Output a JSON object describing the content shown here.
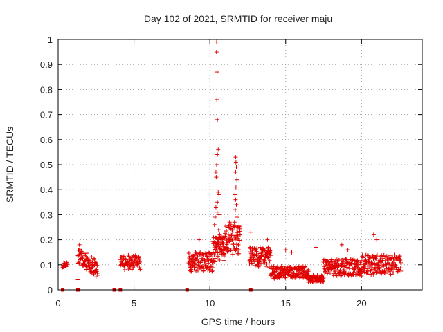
{
  "chart_data": {
    "type": "scatter",
    "title": "Day 102 of 2021, SRMTID for receiver maju",
    "xlabel": "GPS time / hours",
    "ylabel": "SRMTID / TECUs",
    "xlim": [
      0,
      24
    ],
    "ylim": [
      0,
      1
    ],
    "xticks": [
      0,
      5,
      10,
      15,
      20
    ],
    "xtick_labels": [
      "0",
      "5",
      "10",
      "15",
      "20"
    ],
    "yticks": [
      0,
      0.1,
      0.2,
      0.3,
      0.4,
      0.5,
      0.6,
      0.7,
      0.8,
      0.9,
      1
    ],
    "ytick_labels": [
      "0",
      "0.1",
      "0.2",
      "0.3",
      "0.4",
      "0.5",
      "0.6",
      "0.7",
      "0.8",
      "0.9",
      "1"
    ],
    "grid": true,
    "series_color": "#e00000",
    "marker": "+",
    "segments": [
      {
        "x_start": 0.3,
        "x_end": 0.6,
        "y_base": 0.1,
        "y_amp": 0.01,
        "count": 14
      },
      {
        "x_start": 1.3,
        "x_end": 2.6,
        "y_base": 0.14,
        "y_end": 0.08,
        "y_amp": 0.035,
        "count": 90
      },
      {
        "x_start": 4.1,
        "x_end": 5.4,
        "y_base": 0.11,
        "y_amp": 0.03,
        "count": 80
      },
      {
        "x_start": 8.6,
        "x_end": 10.2,
        "y_base": 0.11,
        "y_amp": 0.04,
        "count": 110
      },
      {
        "x_start": 10.2,
        "x_end": 11.0,
        "y_base": 0.16,
        "y_amp": 0.05,
        "count": 70
      },
      {
        "x_start": 11.0,
        "x_end": 12.0,
        "y_base": 0.2,
        "y_amp": 0.06,
        "count": 70
      },
      {
        "x_start": 12.6,
        "x_end": 14.0,
        "y_base": 0.13,
        "y_amp": 0.04,
        "count": 110
      },
      {
        "x_start": 14.0,
        "x_end": 16.5,
        "y_base": 0.07,
        "y_amp": 0.025,
        "count": 170
      },
      {
        "x_start": 16.5,
        "x_end": 17.5,
        "y_base": 0.045,
        "y_amp": 0.015,
        "count": 80
      },
      {
        "x_start": 17.5,
        "x_end": 20.0,
        "y_base": 0.09,
        "y_amp": 0.035,
        "count": 170
      },
      {
        "x_start": 20.0,
        "x_end": 22.6,
        "y_base": 0.1,
        "y_amp": 0.04,
        "count": 170
      }
    ],
    "peaks": [
      {
        "x": 10.45,
        "y": 0.99
      },
      {
        "x": 10.44,
        "y": 0.95
      },
      {
        "x": 10.48,
        "y": 0.87
      },
      {
        "x": 10.46,
        "y": 0.76
      },
      {
        "x": 10.5,
        "y": 0.68
      },
      {
        "x": 10.55,
        "y": 0.56
      },
      {
        "x": 10.5,
        "y": 0.54
      },
      {
        "x": 10.45,
        "y": 0.5
      },
      {
        "x": 10.4,
        "y": 0.47
      },
      {
        "x": 10.42,
        "y": 0.45
      },
      {
        "x": 10.55,
        "y": 0.39
      },
      {
        "x": 10.6,
        "y": 0.38
      },
      {
        "x": 10.5,
        "y": 0.35
      },
      {
        "x": 10.4,
        "y": 0.33
      },
      {
        "x": 10.48,
        "y": 0.31
      },
      {
        "x": 10.35,
        "y": 0.29
      },
      {
        "x": 10.6,
        "y": 0.3
      },
      {
        "x": 10.3,
        "y": 0.26
      },
      {
        "x": 10.58,
        "y": 0.24
      },
      {
        "x": 10.65,
        "y": 0.22
      },
      {
        "x": 11.7,
        "y": 0.53
      },
      {
        "x": 11.72,
        "y": 0.51
      },
      {
        "x": 11.75,
        "y": 0.49
      },
      {
        "x": 11.7,
        "y": 0.47
      },
      {
        "x": 11.78,
        "y": 0.44
      },
      {
        "x": 11.72,
        "y": 0.41
      },
      {
        "x": 11.65,
        "y": 0.38
      },
      {
        "x": 11.7,
        "y": 0.36
      },
      {
        "x": 11.75,
        "y": 0.34
      },
      {
        "x": 11.68,
        "y": 0.32
      },
      {
        "x": 11.8,
        "y": 0.29
      },
      {
        "x": 11.62,
        "y": 0.27
      },
      {
        "x": 11.85,
        "y": 0.25
      },
      {
        "x": 11.3,
        "y": 0.27
      },
      {
        "x": 11.4,
        "y": 0.26
      },
      {
        "x": 11.2,
        "y": 0.25
      },
      {
        "x": 11.5,
        "y": 0.24
      },
      {
        "x": 12.7,
        "y": 0.23
      },
      {
        "x": 13.8,
        "y": 0.2
      },
      {
        "x": 15.0,
        "y": 0.16
      },
      {
        "x": 17.0,
        "y": 0.17
      },
      {
        "x": 18.7,
        "y": 0.18
      },
      {
        "x": 20.8,
        "y": 0.22
      },
      {
        "x": 21.0,
        "y": 0.2
      },
      {
        "x": 1.4,
        "y": 0.18
      },
      {
        "x": 1.3,
        "y": 0.04
      },
      {
        "x": 9.3,
        "y": 0.2
      },
      {
        "x": 19.1,
        "y": 0.16
      },
      {
        "x": 15.4,
        "y": 0.15
      }
    ],
    "zero_markers": [
      0.3,
      1.3,
      3.7,
      4.1,
      8.5,
      12.7
    ]
  }
}
